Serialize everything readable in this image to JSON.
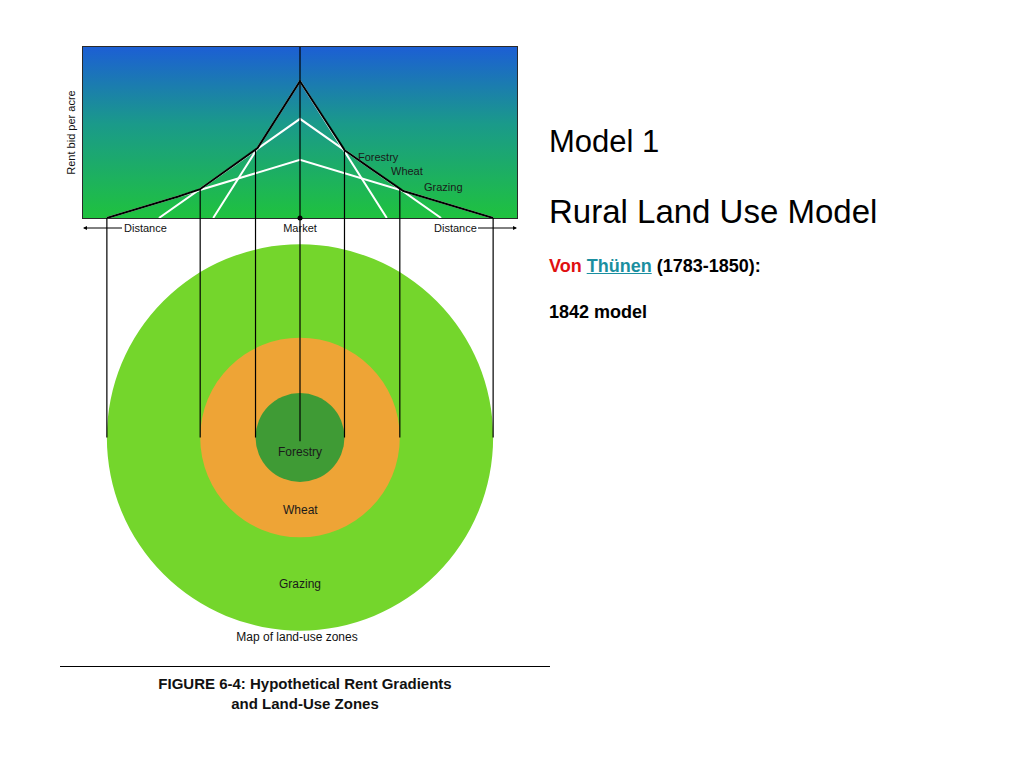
{
  "chart_data": {
    "type": "line",
    "ylabel": "Rent bid per acre",
    "xlabel": "Distance",
    "xlim": [
      -10,
      10
    ],
    "ylim": [
      0,
      10
    ],
    "xticks": [
      {
        "value": 0,
        "label": "Market"
      }
    ],
    "yticks": [],
    "tick_labels": "x",
    "grid": false,
    "series": [
      {
        "name": "Forestry",
        "color": "#ffffff",
        "x": [
          -4,
          0,
          4
        ],
        "values": [
          0,
          8,
          0
        ]
      },
      {
        "name": "Wheat",
        "color": "#ffffff",
        "x": [
          -6.5,
          0,
          6.5
        ],
        "values": [
          0,
          5.8,
          0
        ]
      },
      {
        "name": "Grazing",
        "color": "#ffffff",
        "x": [
          -8.9,
          0,
          8.9
        ],
        "values": [
          0,
          3.4,
          0
        ]
      }
    ]
  },
  "map": {
    "title": "Map of land-use zones",
    "zones": [
      {
        "label": "Forestry",
        "radius": 2.05,
        "color": "#3f9b35"
      },
      {
        "label": "Wheat",
        "radius": 4.6,
        "color": "#eea436"
      },
      {
        "label": "Grazing",
        "radius": 8.9,
        "color": "#74d62c"
      }
    ]
  },
  "side_text": {
    "model": "Model 1",
    "title": "Rural Land Use Model",
    "author": {
      "prefix": "Von",
      "name": "Thünen",
      "dates": "(1783-1850):"
    },
    "note": "1842 model"
  },
  "caption": {
    "lines": [
      "FIGURE 6-4:  Hypothetical Rent Gradients",
      "and Land-Use Zones"
    ]
  }
}
